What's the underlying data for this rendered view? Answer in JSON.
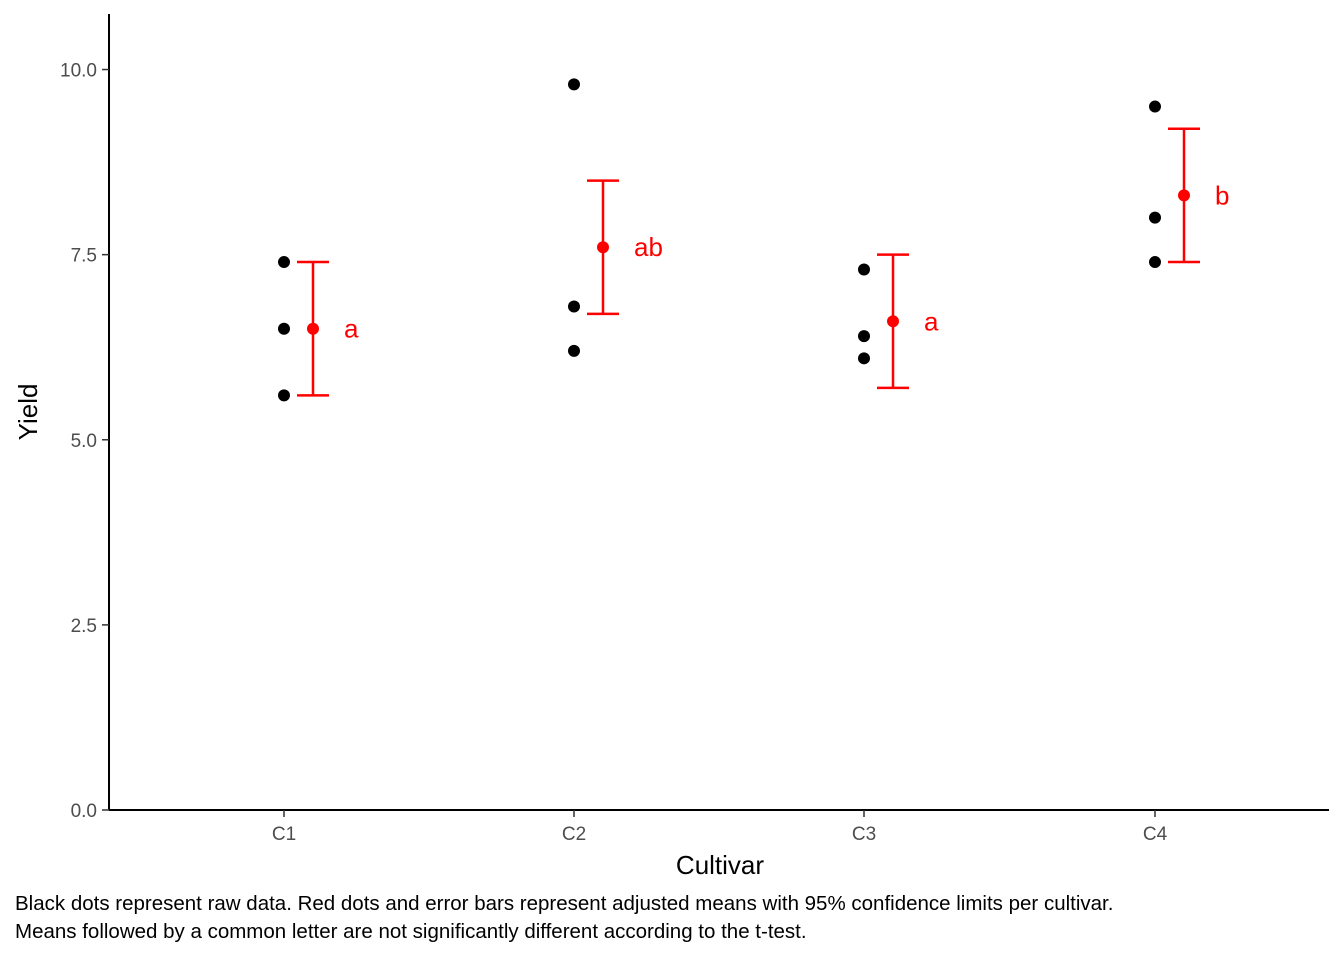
{
  "chart_data": {
    "type": "scatter",
    "title": "",
    "xlabel": "Cultivar",
    "ylabel": "Yield",
    "categories": [
      "C1",
      "C2",
      "C3",
      "C4"
    ],
    "ylim": [
      0,
      10.75
    ],
    "yticks": [
      0.0,
      2.5,
      5.0,
      7.5,
      10.0
    ],
    "ytick_labels": [
      "0.0",
      "2.5",
      "5.0",
      "7.5",
      "10.0"
    ],
    "grid": false,
    "raw_data": [
      {
        "category": "C1",
        "values": [
          7.4,
          6.5,
          5.6
        ]
      },
      {
        "category": "C2",
        "values": [
          9.8,
          6.8,
          6.2
        ]
      },
      {
        "category": "C3",
        "values": [
          7.3,
          6.4,
          6.1
        ]
      },
      {
        "category": "C4",
        "values": [
          9.5,
          8.0,
          7.4
        ]
      }
    ],
    "means": [
      {
        "category": "C1",
        "mean": 6.5,
        "lower": 5.6,
        "upper": 7.4,
        "letter": "a"
      },
      {
        "category": "C2",
        "mean": 7.6,
        "lower": 6.7,
        "upper": 8.5,
        "letter": "ab"
      },
      {
        "category": "C3",
        "mean": 6.6,
        "lower": 5.7,
        "upper": 7.5,
        "letter": "a"
      },
      {
        "category": "C4",
        "mean": 8.3,
        "lower": 7.4,
        "upper": 9.2,
        "letter": "b"
      }
    ],
    "colors": {
      "raw": "#000000",
      "mean": "#ff0000",
      "axis": "#000000",
      "tick_label": "#4d4d4d"
    }
  },
  "caption": {
    "line1": "Black dots represent raw data. Red dots and error bars represent adjusted means with 95% confidence limits per cultivar.",
    "line2": "Means followed by a common letter are not significantly different according to the t-test."
  }
}
